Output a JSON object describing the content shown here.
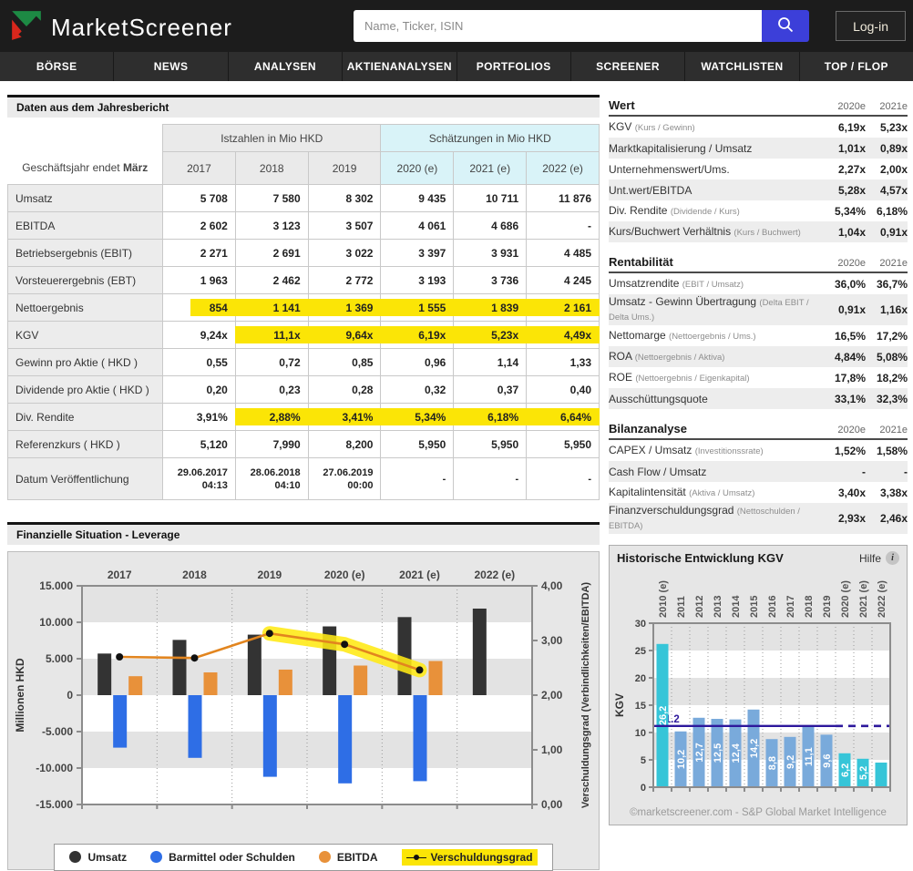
{
  "header": {
    "logo_text": "MarketScreener",
    "search_placeholder": "Name, Ticker, ISIN",
    "login_label": "Log-in"
  },
  "nav": {
    "items": [
      "BÖRSE",
      "NEWS",
      "ANALYSEN",
      "AKTIENANALYSEN",
      "PORTFOLIOS",
      "SCREENER",
      "WATCHLISTEN",
      "TOP / FLOP"
    ]
  },
  "annual_report": {
    "title": "Daten aus dem Jahresbericht",
    "fiscal_prefix": "Geschäftsjahr endet ",
    "fiscal_bold": "März",
    "group_actual": "Istzahlen in Mio HKD",
    "group_estimate": "Schätzungen in Mio HKD",
    "years": [
      "2017",
      "2018",
      "2019",
      "2020 (e)",
      "2021 (e)",
      "2022 (e)"
    ],
    "rows": [
      {
        "label": "Umsatz",
        "values": [
          "5 708",
          "7 580",
          "8 302",
          "9 435",
          "10 711",
          "11 876"
        ],
        "highlights": [
          0,
          0,
          0,
          0,
          0,
          0
        ]
      },
      {
        "label": "EBITDA",
        "values": [
          "2 602",
          "3 123",
          "3 507",
          "4 061",
          "4 686",
          "-"
        ],
        "highlights": [
          0,
          0,
          0,
          0,
          0,
          0
        ]
      },
      {
        "label": "Betriebsergebnis (EBIT)",
        "values": [
          "2 271",
          "2 691",
          "3 022",
          "3 397",
          "3 931",
          "4 485"
        ],
        "highlights": [
          0,
          0,
          0,
          0,
          0,
          0
        ]
      },
      {
        "label": "Vorsteuerergebnis (EBT)",
        "values": [
          "1 963",
          "2 462",
          "2 772",
          "3 193",
          "3 736",
          "4 245"
        ],
        "highlights": [
          0,
          0,
          0,
          0,
          0,
          0
        ]
      },
      {
        "label": "Nettoergebnis",
        "values": [
          "854",
          "1 141",
          "1 369",
          "1 555",
          "1 839",
          "2 161"
        ],
        "highlights": [
          2,
          1,
          1,
          1,
          1,
          1
        ]
      },
      {
        "label": "KGV",
        "values": [
          "9,24x",
          "11,1x",
          "9,64x",
          "6,19x",
          "5,23x",
          "4,49x"
        ],
        "highlights": [
          0,
          1,
          1,
          1,
          1,
          1
        ]
      },
      {
        "label": "Gewinn pro Aktie ( HKD )",
        "values": [
          "0,55",
          "0,72",
          "0,85",
          "0,96",
          "1,14",
          "1,33"
        ],
        "highlights": [
          0,
          0,
          0,
          0,
          0,
          0
        ]
      },
      {
        "label": "Dividende pro Aktie ( HKD )",
        "values": [
          "0,20",
          "0,23",
          "0,28",
          "0,32",
          "0,37",
          "0,40"
        ],
        "highlights": [
          0,
          0,
          0,
          0,
          0,
          0
        ]
      },
      {
        "label": "Div. Rendite",
        "values": [
          "3,91%",
          "2,88%",
          "3,41%",
          "5,34%",
          "6,18%",
          "6,64%"
        ],
        "highlights": [
          0,
          1,
          1,
          1,
          1,
          1
        ]
      },
      {
        "label": "Referenzkurs ( HKD )",
        "values": [
          "5,120",
          "7,990",
          "8,200",
          "5,950",
          "5,950",
          "5,950"
        ],
        "highlights": [
          0,
          0,
          0,
          0,
          0,
          0
        ]
      },
      {
        "label": "Datum Veröffentlichung",
        "values": [
          "29.06.2017\n04:13",
          "28.06.2018\n04:10",
          "27.06.2019\n00:00",
          "-",
          "-",
          "-"
        ],
        "highlights": [
          0,
          0,
          0,
          0,
          0,
          0
        ],
        "small": true
      }
    ]
  },
  "side_tables": [
    {
      "title": "Wert",
      "cols": [
        "2020e",
        "2021e"
      ],
      "rows": [
        {
          "label": "KGV",
          "note": "(Kurs / Gewinn)",
          "values": [
            "6,19x",
            "5,23x"
          ]
        },
        {
          "label": "Marktkapitalisierung / Umsatz",
          "note": "",
          "values": [
            "1,01x",
            "0,89x"
          ]
        },
        {
          "label": "Unternehmenswert/Ums.",
          "note": "",
          "values": [
            "2,27x",
            "2,00x"
          ]
        },
        {
          "label": "Unt.wert/EBITDA",
          "note": "",
          "values": [
            "5,28x",
            "4,57x"
          ]
        },
        {
          "label": "Div. Rendite",
          "note": "(Dividende / Kurs)",
          "values": [
            "5,34%",
            "6,18%"
          ]
        },
        {
          "label": "Kurs/Buchwert Verhältnis",
          "note": "(Kurs / Buchwert)",
          "values": [
            "1,04x",
            "0,91x"
          ]
        }
      ]
    },
    {
      "title": "Rentabilität",
      "cols": [
        "2020e",
        "2021e"
      ],
      "rows": [
        {
          "label": "Umsatzrendite",
          "note": "(EBIT / Umsatz)",
          "values": [
            "36,0%",
            "36,7%"
          ]
        },
        {
          "label": "Umsatz - Gewinn Übertragung",
          "note": "(Delta EBIT / Delta Ums.)",
          "values": [
            "0,91x",
            "1,16x"
          ]
        },
        {
          "label": "Nettomarge",
          "note": "(Nettoergebnis / Ums.)",
          "values": [
            "16,5%",
            "17,2%"
          ]
        },
        {
          "label": "ROA",
          "note": "(Nettoergebnis / Aktiva)",
          "values": [
            "4,84%",
            "5,08%"
          ]
        },
        {
          "label": "ROE",
          "note": "(Nettoergebnis / Eigenkapital)",
          "values": [
            "17,8%",
            "18,2%"
          ]
        },
        {
          "label": "Ausschüttungsquote",
          "note": "",
          "values": [
            "33,1%",
            "32,3%"
          ]
        }
      ]
    },
    {
      "title": "Bilanzanalyse",
      "cols": [
        "2020e",
        "2021e"
      ],
      "rows": [
        {
          "label": "CAPEX / Umsatz",
          "note": "(Investitionssrate)",
          "values": [
            "1,52%",
            "1,58%"
          ]
        },
        {
          "label": "Cash Flow / Umsatz",
          "note": "",
          "values": [
            "-",
            "-"
          ]
        },
        {
          "label": "Kapitalintensität",
          "note": "(Aktiva / Umsatz)",
          "values": [
            "3,40x",
            "3,38x"
          ]
        },
        {
          "label": "Finanzverschuldungsgrad",
          "note": "(Nettoschulden / EBITDA)",
          "values": [
            "2,93x",
            "2,46x"
          ]
        }
      ]
    }
  ],
  "chart_data": [
    {
      "type": "bar+line",
      "title": "Finanzielle Situation - Leverage",
      "categories": [
        "2017",
        "2018",
        "2019",
        "2020 (e)",
        "2021 (e)",
        "2022 (e)"
      ],
      "series": [
        {
          "name": "Umsatz",
          "kind": "bar",
          "color": "#333333",
          "values": [
            5708,
            7580,
            8302,
            9435,
            10711,
            11876
          ]
        },
        {
          "name": "Barmittel oder Schulden",
          "kind": "bar",
          "color": "#2e6ee6",
          "values": [
            -7200,
            -8600,
            -11200,
            -12100,
            -11800,
            null
          ]
        },
        {
          "name": "EBITDA",
          "kind": "bar",
          "color": "#e8913a",
          "values": [
            2602,
            3123,
            3507,
            4061,
            4686,
            null
          ]
        },
        {
          "name": "Verschuldungsgrad",
          "kind": "line",
          "axis": "right",
          "color": "#e2851f",
          "highlight_color": "#ffe913",
          "highlight_range": [
            2,
            4
          ],
          "values": [
            2.7,
            2.68,
            3.13,
            2.93,
            2.46,
            null
          ]
        }
      ],
      "ylabel_left": "Millionen HKD",
      "ylim_left": [
        -15000,
        15000
      ],
      "ytick_step_left": 5000,
      "ylabel_right": "Verschuldungsgrad (Verbindlichkeiten/EBITDA)",
      "ylim_right": [
        0,
        4
      ],
      "ytick_step_right": 1,
      "grid": "vertical-dotted"
    },
    {
      "type": "bar",
      "title": "Historische Entwicklung KGV",
      "help_label": "Hilfe",
      "categories": [
        "2010 (e)",
        "2011",
        "2012",
        "2013",
        "2014",
        "2015",
        "2016",
        "2017",
        "2018",
        "2019",
        "2020 (e)",
        "2021 (e)",
        "2022 (e)"
      ],
      "values": [
        26.2,
        10.2,
        12.7,
        12.5,
        12.4,
        14.2,
        8.8,
        9.2,
        11.1,
        9.6,
        6.2,
        5.2,
        4.5
      ],
      "bar_labels": [
        "26,2",
        "10,2",
        "12,7",
        "12,5",
        "12,4",
        "14,2",
        "8,8",
        "9,2",
        "11,1",
        "9,6",
        "6,2",
        "5,2",
        ""
      ],
      "estimate_flags": [
        true,
        false,
        false,
        false,
        false,
        false,
        false,
        false,
        false,
        false,
        true,
        true,
        true
      ],
      "color_actual": "#79aadb",
      "color_estimate": "#36c5d8",
      "ylabel": "KGV",
      "ylim": [
        0,
        30
      ],
      "ytick_step": 5,
      "reference_line": {
        "value": 11.2,
        "label": "11.2",
        "color": "#2d189c",
        "solid_until_index": 9
      },
      "footer": "©marketscreener.com - S&P Global Market Intelligence"
    }
  ],
  "colors": {
    "header_bg": "#1c1c1c",
    "nav_bg": "#2e2e2e",
    "search_button": "#3c3fd9",
    "highlight": "#fbe506",
    "estimate_header_bg": "#d9f3f8",
    "logo_green": "#1d8a44",
    "logo_red": "#d8271c"
  }
}
